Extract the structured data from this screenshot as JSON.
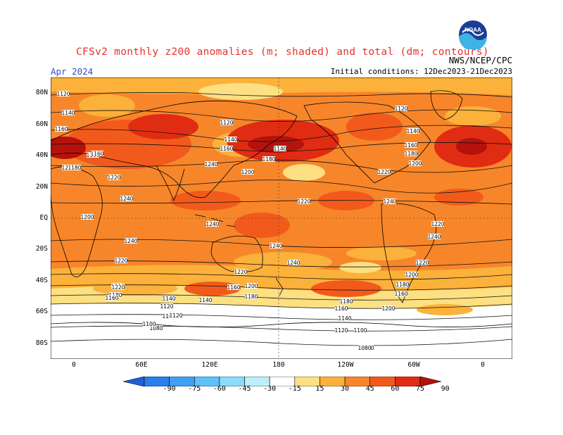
{
  "header": {
    "title": "CFSv2 monthly z200 anomalies (m; shaded) and total (dm; contours)",
    "month": "Apr 2024",
    "org": "NWS/NCEP/CPC",
    "initial_conditions": "Initial conditions: 12Dec2023-21Dec2023",
    "logo_text": "NOAA"
  },
  "axes": {
    "lat_labels": [
      "80N",
      "60N",
      "40N",
      "20N",
      "EQ",
      "20S",
      "40S",
      "60S",
      "80S"
    ],
    "lon_labels": [
      "0",
      "60E",
      "120E",
      "180",
      "120W",
      "60W",
      "0"
    ]
  },
  "colorbar": {
    "ticks": [
      "-90",
      "-75",
      "-60",
      "-45",
      "-30",
      "-15",
      "15",
      "30",
      "45",
      "60",
      "75",
      "90"
    ],
    "colors": [
      "#1f5fd9",
      "#2a80ea",
      "#3f9ff3",
      "#5ec0f8",
      "#8bdcfb",
      "#bdeefc",
      "#ffffff",
      "#fde081",
      "#fbb13a",
      "#f7862a",
      "#f25a1c",
      "#e02c12",
      "#b5120d"
    ]
  },
  "contours": {
    "labels": [
      "1120",
      "1140",
      "1160",
      "1180",
      "1200",
      "1220",
      "1240",
      "1240",
      "1220",
      "1200",
      "1180",
      "1160",
      "1140",
      "1120",
      "1100",
      "1080",
      "1120",
      "1140",
      "1160",
      "1180",
      "1200",
      "1220",
      "1240",
      "1240",
      "1220",
      "1200",
      "1180",
      "1160",
      "1140",
      "1120",
      "1100",
      "1080",
      "1140",
      "1160",
      "1180",
      "1200",
      "1220",
      "1240",
      "1240",
      "1220",
      "1200",
      "1180",
      "1160",
      "1120",
      "1140",
      "1160",
      "1180",
      "1200",
      "1220",
      "1240",
      "1240",
      "1220",
      "1200",
      "1180",
      "1160",
      "1140",
      "1120",
      "1100",
      "1080"
    ]
  }
}
